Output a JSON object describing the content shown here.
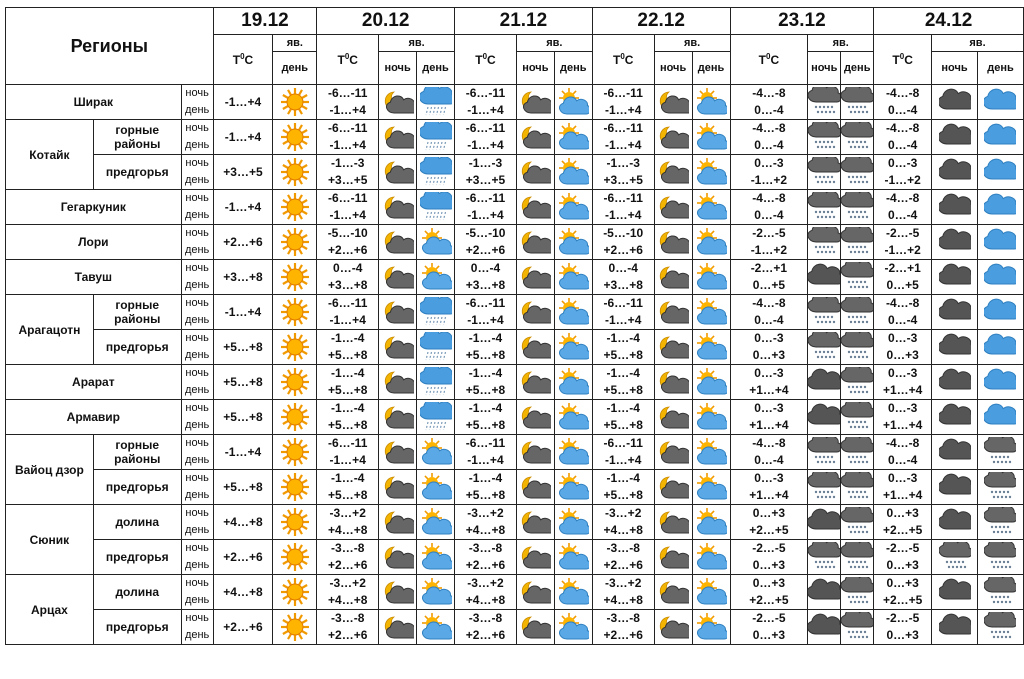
{
  "header": {
    "regions_label": "Регионы",
    "tc_label": "T",
    "tc_sup": "0",
    "tc_unit": "C",
    "yav_label": "яв.",
    "night_label": "ночь",
    "day_label": "день",
    "dates": [
      "19.12",
      "20.12",
      "21.12",
      "22.12",
      "23.12",
      "24.12"
    ]
  },
  "icons": {
    "sun": "sun-icon",
    "moon_cloud": "moon-cloud-icon",
    "cloud_rain": "cloud-rain-icon",
    "sun_cloud": "sun-cloud-icon",
    "cloud_snow": "cloud-snow-icon",
    "dark_cloud": "dark-cloud-icon",
    "cloud": "cloud-icon"
  },
  "rows": [
    {
      "region": "Ширак",
      "sub": "",
      "n": "ночь",
      "d": "день",
      "t19": "-1…+4",
      "t20": [
        "-6…-11",
        "-1…+4"
      ],
      "i20": [
        "moon_cloud",
        "cloud_rain"
      ],
      "t21": [
        "-6…-11",
        "-1…+4"
      ],
      "i21": [
        "moon_cloud",
        "sun_cloud"
      ],
      "t22": [
        "-6…-11",
        "-1…+4"
      ],
      "i22": [
        "moon_cloud",
        "sun_cloud"
      ],
      "t23": [
        "-4…-8",
        "0…-4"
      ],
      "i23": [
        "cloud_snow",
        "cloud_snow"
      ],
      "t24": [
        "-4…-8",
        "0…-4"
      ],
      "i24": [
        "dark_cloud",
        "cloud"
      ]
    },
    {
      "region": "Котайк",
      "sub": "горные районы",
      "n": "ночь",
      "d": "день",
      "t19": "-1…+4",
      "t20": [
        "-6…-11",
        "-1…+4"
      ],
      "i20": [
        "moon_cloud",
        "cloud_rain"
      ],
      "t21": [
        "-6…-11",
        "-1…+4"
      ],
      "i21": [
        "moon_cloud",
        "sun_cloud"
      ],
      "t22": [
        "-6…-11",
        "-1…+4"
      ],
      "i22": [
        "moon_cloud",
        "sun_cloud"
      ],
      "t23": [
        "-4…-8",
        "0…-4"
      ],
      "i23": [
        "cloud_snow",
        "cloud_snow"
      ],
      "t24": [
        "-4…-8",
        "0…-4"
      ],
      "i24": [
        "dark_cloud",
        "cloud"
      ]
    },
    {
      "region": "",
      "sub": "предгорья",
      "n": "ночь",
      "d": "день",
      "t19": "+3…+5",
      "t20": [
        "-1…-3",
        "+3…+5"
      ],
      "i20": [
        "moon_cloud",
        "cloud_rain"
      ],
      "t21": [
        "-1…-3",
        "+3…+5"
      ],
      "i21": [
        "moon_cloud",
        "sun_cloud"
      ],
      "t22": [
        "-1…-3",
        "+3…+5"
      ],
      "i22": [
        "moon_cloud",
        "sun_cloud"
      ],
      "t23": [
        "0…-3",
        "-1…+2"
      ],
      "i23": [
        "cloud_snow",
        "cloud_snow"
      ],
      "t24": [
        "0…-3",
        "-1…+2"
      ],
      "i24": [
        "dark_cloud",
        "cloud"
      ]
    },
    {
      "region": "Гегаркуник",
      "sub": "",
      "n": "ночь",
      "d": "день",
      "t19": "-1…+4",
      "t20": [
        "-6…-11",
        "-1…+4"
      ],
      "i20": [
        "moon_cloud",
        "cloud_rain"
      ],
      "t21": [
        "-6…-11",
        "-1…+4"
      ],
      "i21": [
        "moon_cloud",
        "sun_cloud"
      ],
      "t22": [
        "-6…-11",
        "-1…+4"
      ],
      "i22": [
        "moon_cloud",
        "sun_cloud"
      ],
      "t23": [
        "-4…-8",
        "0…-4"
      ],
      "i23": [
        "cloud_snow",
        "cloud_snow"
      ],
      "t24": [
        "-4…-8",
        "0…-4"
      ],
      "i24": [
        "dark_cloud",
        "cloud"
      ]
    },
    {
      "region": "Лори",
      "sub": "",
      "n": "ночь",
      "d": "день",
      "t19": "+2…+6",
      "t20": [
        "-5…-10",
        "+2…+6"
      ],
      "i20": [
        "moon_cloud",
        "sun_cloud"
      ],
      "t21": [
        "-5…-10",
        "+2…+6"
      ],
      "i21": [
        "moon_cloud",
        "sun_cloud"
      ],
      "t22": [
        "-5…-10",
        "+2…+6"
      ],
      "i22": [
        "moon_cloud",
        "sun_cloud"
      ],
      "t23": [
        "-2…-5",
        "-1…+2"
      ],
      "i23": [
        "cloud_snow",
        "cloud_snow"
      ],
      "t24": [
        "-2…-5",
        "-1…+2"
      ],
      "i24": [
        "dark_cloud",
        "cloud"
      ]
    },
    {
      "region": "Тавуш",
      "sub": "",
      "n": "ночь",
      "d": "день",
      "t19": "+3…+8",
      "t20": [
        "0…-4",
        "+3…+8"
      ],
      "i20": [
        "moon_cloud",
        "sun_cloud"
      ],
      "t21": [
        "0…-4",
        "+3…+8"
      ],
      "i21": [
        "moon_cloud",
        "sun_cloud"
      ],
      "t22": [
        "0…-4",
        "+3…+8"
      ],
      "i22": [
        "moon_cloud",
        "sun_cloud"
      ],
      "t23": [
        "-2…+1",
        "0…+5"
      ],
      "i23": [
        "dark_cloud",
        "cloud_snow"
      ],
      "t24": [
        "-2…+1",
        "0…+5"
      ],
      "i24": [
        "dark_cloud",
        "cloud"
      ]
    },
    {
      "region": "Арагацотн",
      "sub": "горные районы",
      "n": "ночь",
      "d": "день",
      "t19": "-1…+4",
      "t20": [
        "-6…-11",
        "-1…+4"
      ],
      "i20": [
        "moon_cloud",
        "cloud_rain"
      ],
      "t21": [
        "-6…-11",
        "-1…+4"
      ],
      "i21": [
        "moon_cloud",
        "sun_cloud"
      ],
      "t22": [
        "-6…-11",
        "-1…+4"
      ],
      "i22": [
        "moon_cloud",
        "sun_cloud"
      ],
      "t23": [
        "-4…-8",
        "0…-4"
      ],
      "i23": [
        "cloud_snow",
        "cloud_snow"
      ],
      "t24": [
        "-4…-8",
        "0…-4"
      ],
      "i24": [
        "dark_cloud",
        "cloud"
      ]
    },
    {
      "region": "",
      "sub": "предгорья",
      "n": "ночь",
      "d": "день",
      "t19": "+5…+8",
      "t20": [
        "-1…-4",
        "+5…+8"
      ],
      "i20": [
        "moon_cloud",
        "cloud_rain"
      ],
      "t21": [
        "-1…-4",
        "+5…+8"
      ],
      "i21": [
        "moon_cloud",
        "sun_cloud"
      ],
      "t22": [
        "-1…-4",
        "+5…+8"
      ],
      "i22": [
        "moon_cloud",
        "sun_cloud"
      ],
      "t23": [
        "0…-3",
        "0…+3"
      ],
      "i23": [
        "cloud_snow",
        "cloud_snow"
      ],
      "t24": [
        "0…-3",
        "0…+3"
      ],
      "i24": [
        "dark_cloud",
        "cloud"
      ]
    },
    {
      "region": "Арарат",
      "sub": "",
      "n": "ночь",
      "d": "день",
      "t19": "+5…+8",
      "t20": [
        "-1…-4",
        "+5…+8"
      ],
      "i20": [
        "moon_cloud",
        "cloud_rain"
      ],
      "t21": [
        "-1…-4",
        "+5…+8"
      ],
      "i21": [
        "moon_cloud",
        "sun_cloud"
      ],
      "t22": [
        "-1…-4",
        "+5…+8"
      ],
      "i22": [
        "moon_cloud",
        "sun_cloud"
      ],
      "t23": [
        "0…-3",
        "+1…+4"
      ],
      "i23": [
        "dark_cloud",
        "cloud_snow"
      ],
      "t24": [
        "0…-3",
        "+1…+4"
      ],
      "i24": [
        "dark_cloud",
        "cloud"
      ]
    },
    {
      "region": "Армавир",
      "sub": "",
      "n": "ночь",
      "d": "день",
      "t19": "+5…+8",
      "t20": [
        "-1…-4",
        "+5…+8"
      ],
      "i20": [
        "moon_cloud",
        "cloud_rain"
      ],
      "t21": [
        "-1…-4",
        "+5…+8"
      ],
      "i21": [
        "moon_cloud",
        "sun_cloud"
      ],
      "t22": [
        "-1…-4",
        "+5…+8"
      ],
      "i22": [
        "moon_cloud",
        "sun_cloud"
      ],
      "t23": [
        "0…-3",
        "+1…+4"
      ],
      "i23": [
        "dark_cloud",
        "cloud_snow"
      ],
      "t24": [
        "0…-3",
        "+1…+4"
      ],
      "i24": [
        "dark_cloud",
        "cloud"
      ]
    },
    {
      "region": "Вайоц дзор",
      "sub": "горные районы",
      "n": "ночь",
      "d": "день",
      "t19": "-1…+4",
      "t20": [
        "-6…-11",
        "-1…+4"
      ],
      "i20": [
        "moon_cloud",
        "sun_cloud"
      ],
      "t21": [
        "-6…-11",
        "-1…+4"
      ],
      "i21": [
        "moon_cloud",
        "sun_cloud"
      ],
      "t22": [
        "-6…-11",
        "-1…+4"
      ],
      "i22": [
        "moon_cloud",
        "sun_cloud"
      ],
      "t23": [
        "-4…-8",
        "0…-4"
      ],
      "i23": [
        "cloud_snow",
        "cloud_snow"
      ],
      "t24": [
        "-4…-8",
        "0…-4"
      ],
      "i24": [
        "dark_cloud",
        "cloud_snow"
      ]
    },
    {
      "region": "",
      "sub": "предгорья",
      "n": "ночь",
      "d": "день",
      "t19": "+5…+8",
      "t20": [
        "-1…-4",
        "+5…+8"
      ],
      "i20": [
        "moon_cloud",
        "sun_cloud"
      ],
      "t21": [
        "-1…-4",
        "+5…+8"
      ],
      "i21": [
        "moon_cloud",
        "sun_cloud"
      ],
      "t22": [
        "-1…-4",
        "+5…+8"
      ],
      "i22": [
        "moon_cloud",
        "sun_cloud"
      ],
      "t23": [
        "0…-3",
        "+1…+4"
      ],
      "i23": [
        "cloud_snow",
        "cloud_snow"
      ],
      "t24": [
        "0…-3",
        "+1…+4"
      ],
      "i24": [
        "dark_cloud",
        "cloud_snow"
      ]
    },
    {
      "region": "Сюник",
      "sub": "долина",
      "n": "ночь",
      "d": "день",
      "t19": "+4…+8",
      "t20": [
        "-3…+2",
        "+4…+8"
      ],
      "i20": [
        "moon_cloud",
        "sun_cloud"
      ],
      "t21": [
        "-3…+2",
        "+4…+8"
      ],
      "i21": [
        "moon_cloud",
        "sun_cloud"
      ],
      "t22": [
        "-3…+2",
        "+4…+8"
      ],
      "i22": [
        "moon_cloud",
        "sun_cloud"
      ],
      "t23": [
        "0…+3",
        "+2…+5"
      ],
      "i23": [
        "dark_cloud",
        "cloud_snow"
      ],
      "t24": [
        "0…+3",
        "+2…+5"
      ],
      "i24": [
        "dark_cloud",
        "cloud_snow"
      ]
    },
    {
      "region": "",
      "sub": "предгорья",
      "n": "ночь",
      "d": "день",
      "t19": "+2…+6",
      "t20": [
        "-3…-8",
        "+2…+6"
      ],
      "i20": [
        "moon_cloud",
        "sun_cloud"
      ],
      "t21": [
        "-3…-8",
        "+2…+6"
      ],
      "i21": [
        "moon_cloud",
        "sun_cloud"
      ],
      "t22": [
        "-3…-8",
        "+2…+6"
      ],
      "i22": [
        "moon_cloud",
        "sun_cloud"
      ],
      "t23": [
        "-2…-5",
        "0…+3"
      ],
      "i23": [
        "cloud_snow",
        "cloud_snow"
      ],
      "t24": [
        "-2…-5",
        "0…+3"
      ],
      "i24": [
        "cloud_snow",
        "cloud_snow"
      ]
    },
    {
      "region": "Арцах",
      "sub": "долина",
      "n": "ночь",
      "d": "день",
      "t19": "+4…+8",
      "t20": [
        "-3…+2",
        "+4…+8"
      ],
      "i20": [
        "moon_cloud",
        "sun_cloud"
      ],
      "t21": [
        "-3…+2",
        "+4…+8"
      ],
      "i21": [
        "moon_cloud",
        "sun_cloud"
      ],
      "t22": [
        "-3…+2",
        "+4…+8"
      ],
      "i22": [
        "moon_cloud",
        "sun_cloud"
      ],
      "t23": [
        "0…+3",
        "+2…+5"
      ],
      "i23": [
        "dark_cloud",
        "cloud_snow"
      ],
      "t24": [
        "0…+3",
        "+2…+5"
      ],
      "i24": [
        "dark_cloud",
        "cloud_snow"
      ]
    },
    {
      "region": "",
      "sub": "предгорья",
      "n": "ночь",
      "d": "день",
      "t19": "+2…+6",
      "t20": [
        "-3…-8",
        "+2…+6"
      ],
      "i20": [
        "moon_cloud",
        "sun_cloud"
      ],
      "t21": [
        "-3…-8",
        "+2…+6"
      ],
      "i21": [
        "moon_cloud",
        "sun_cloud"
      ],
      "t22": [
        "-3…-8",
        "+2…+6"
      ],
      "i22": [
        "moon_cloud",
        "sun_cloud"
      ],
      "t23": [
        "-2…-5",
        "0…+3"
      ],
      "i23": [
        "dark_cloud",
        "cloud_snow"
      ],
      "t24": [
        "-2…-5",
        "0…+3"
      ],
      "i24": [
        "dark_cloud",
        "cloud_snow"
      ]
    }
  ]
}
